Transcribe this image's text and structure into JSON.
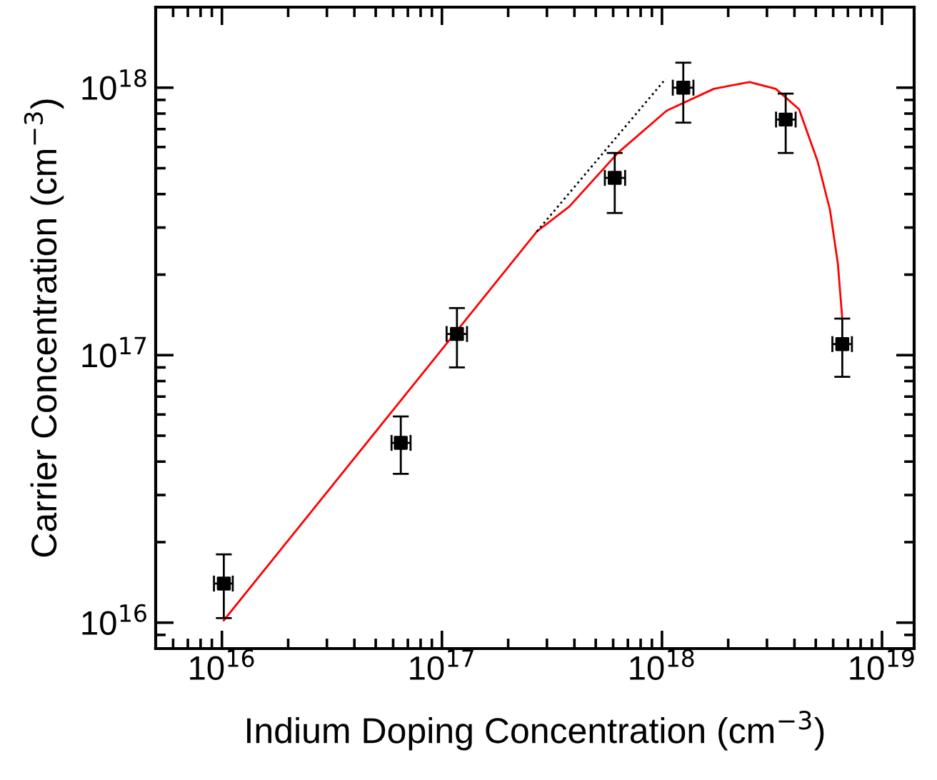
{
  "chart_data": {
    "type": "scatter",
    "xlabel": "Indium Doping Concentration (cm$^{−3}$)",
    "ylabel": "Carrier Concentration (cm$^{−3}$)",
    "log": "xy",
    "grid": false,
    "legend": false,
    "xlim": [
      5000000000000000.0,
      1.4e+19
    ],
    "ylim": [
      8000000000000000.0,
      2e+18
    ],
    "xticks": [
      {
        "value": 1e+16,
        "label": "10$^{16}$"
      },
      {
        "value": 1e+17,
        "label": "10$^{17}$"
      },
      {
        "value": 1e+18,
        "label": "10$^{18}$"
      },
      {
        "value": 1e+19,
        "label": "10$^{19}$"
      }
    ],
    "yticks": [
      {
        "value": 1e+16,
        "label": "10$^{16}$"
      },
      {
        "value": 1e+17,
        "label": "10$^{17}$"
      },
      {
        "value": 1e+18,
        "label": "10$^{18}$"
      }
    ],
    "series": [
      {
        "color": "#000000",
        "marker": "square",
        "x": [
          1.02e+16,
          6.5e+16,
          1.17e+17,
          6.1e+17,
          1.25e+18,
          3.65e+18,
          6.6e+18
        ],
        "values": [
          1.4e+16,
          4.7e+16,
          1.2e+17,
          4.6e+17,
          1e+18,
          7.6e+17,
          1.1e+17
        ],
        "errors": [
          [
            1.04e+16,
            1.8e+16
          ],
          [
            3.6e+16,
            5.9e+16
          ],
          [
            9e+16,
            1.5e+17
          ],
          [
            3.4e+17,
            5.7e+17
          ],
          [
            7.4e+17,
            1.24e+18
          ],
          [
            5.7e+17,
            9.5e+17
          ],
          [
            8.3e+16,
            1.37e+17
          ]
        ],
        "xerrors": [
          [
            9200000000000000.0,
            1.12e+16
          ],
          [
            5.9e+16,
            7.2e+16
          ],
          [
            1.05e+17,
            1.3e+17
          ],
          [
            5.5e+17,
            6.8e+17
          ],
          [
            1.12e+18,
            1.39e+18
          ],
          [
            3.3e+18,
            4.05e+18
          ],
          [
            5.95e+18,
            7.3e+18
          ]
        ]
      },
      {
        "type": "line",
        "color": "#ff0000",
        "line_style": "solid",
        "marker": "none",
        "x": [
          1.02e+16,
          2.7e+17,
          3.8e+17,
          6.3e+17,
          1.05e+18,
          1.72e+18,
          2.5e+18,
          3.29e+18,
          4.2e+18,
          5.1e+18,
          5.8e+18,
          6.3e+18,
          6.6e+18
        ],
        "values": [
          1.02e+16,
          2.9e+17,
          3.6e+17,
          5.7e+17,
          8.2e+17,
          9.9e+17,
          1.05e+18,
          9.9e+17,
          8.3e+17,
          5.3e+17,
          3.5e+17,
          2.2e+17,
          1.37e+17
        ]
      },
      {
        "type": "line",
        "color": "#000000",
        "line_style": "dotted",
        "marker": "none",
        "x": [
          2.7e+17,
          1.04e+18
        ],
        "values": [
          2.9e+17,
          1.08e+18
        ]
      }
    ]
  }
}
